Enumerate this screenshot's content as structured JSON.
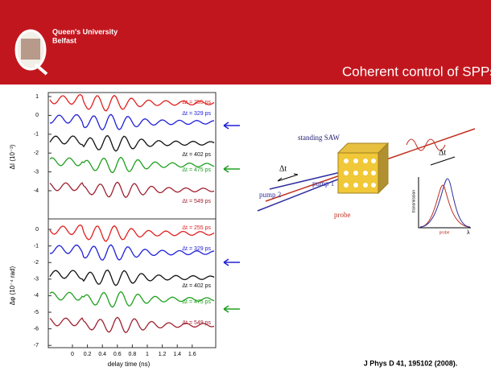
{
  "header": {
    "logo": [
      "Queen's University",
      "Belfast"
    ],
    "title": "Coherent control of SPPs"
  },
  "figure": {
    "upper": {
      "y_label": "ΔI (10⁻³)",
      "ticks": [
        "1",
        "0",
        "-1",
        "-2",
        "-3",
        "-4"
      ],
      "delays": [
        "Δt = 255 ps",
        "Δt = 329 ps",
        "Δt = 402 ps",
        "Δt = 475 ps",
        "Δt = 549 ps"
      ]
    },
    "lower": {
      "y_label": "Δφ (10⁻⁴ rad)",
      "ticks": [
        "0",
        "-1",
        "-2",
        "-3",
        "-4",
        "-5",
        "-6",
        "-7"
      ],
      "delays": [
        "Δt = 255 ps",
        "Δt = 329 ps",
        "Δt = 402 ps",
        "Δt = 475 ps",
        "Δt = 549 ps"
      ]
    },
    "x_ticks": [
      "0",
      "0.2",
      "0.4",
      "0.6",
      "0.8",
      "1",
      "1.2",
      "1.4",
      "1.6"
    ],
    "x_label": "delay time (ns)"
  },
  "diagram": {
    "saw": "standing SAW",
    "dt_left": "Δt",
    "pump1": "pump 1",
    "pump2": "pump 2",
    "probe": "probe",
    "dt_right": "Δt",
    "transmission": "transmission",
    "inset_probe": "probe",
    "lambda": "λ"
  },
  "citation": "J Phys D 41, 195102 (2008)."
}
